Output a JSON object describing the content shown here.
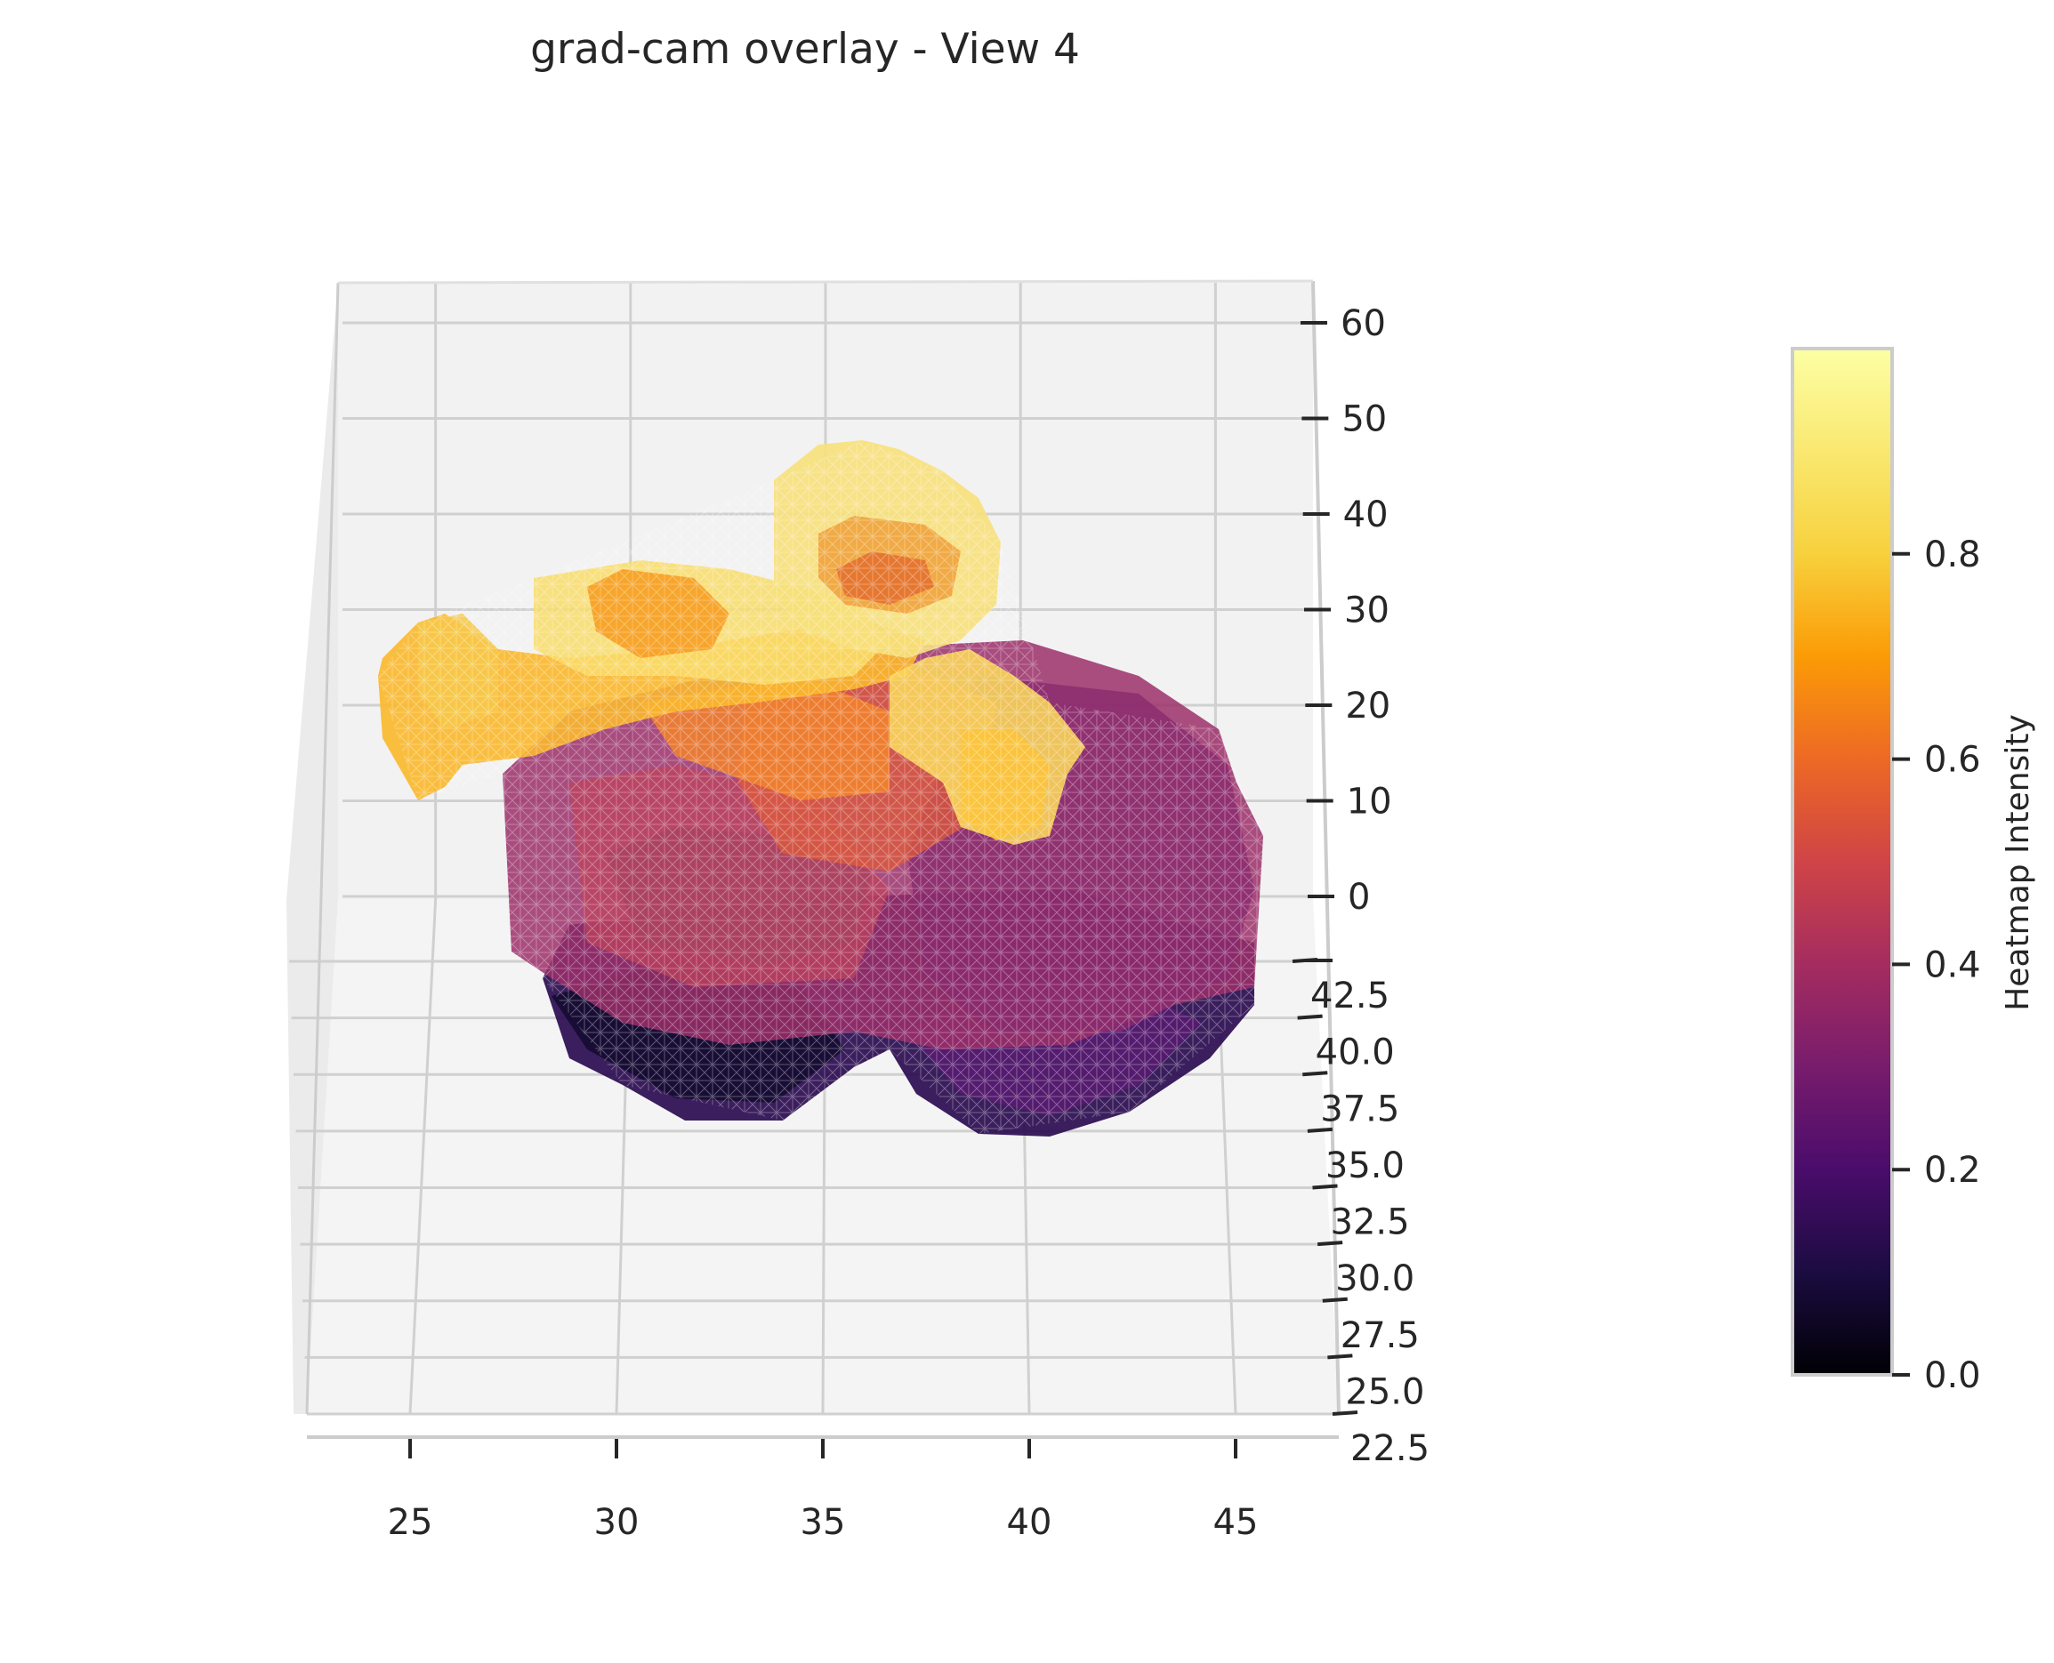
{
  "chart_data": {
    "type": "3d-surface",
    "title": "grad-cam overlay - View 4",
    "x_axis": {
      "ticks": [
        "25",
        "30",
        "35",
        "40",
        "45"
      ],
      "range": [
        22.5,
        47.5
      ]
    },
    "y_axis": {
      "ticks": [
        "22.5",
        "25.0",
        "27.5",
        "30.0",
        "32.5",
        "35.0",
        "37.5",
        "40.0",
        "42.5"
      ],
      "range": [
        22.5,
        42.5
      ]
    },
    "z_axis": {
      "ticks": [
        "0",
        "10",
        "20",
        "30",
        "40",
        "50",
        "60"
      ],
      "range": [
        -10,
        60
      ]
    },
    "grid": true,
    "colorbar": {
      "label": "Heatmap Intensity",
      "colormap": "inferno",
      "ticks": [
        "0.0",
        "0.2",
        "0.4",
        "0.6",
        "0.8"
      ],
      "range": [
        0.0,
        1.0
      ]
    },
    "surface_regions": [
      {
        "intensity": 0.15
      },
      {
        "intensity": 0.3
      },
      {
        "intensity": 0.45
      },
      {
        "intensity": 0.6
      },
      {
        "intensity": 0.72
      },
      {
        "intensity": 0.82
      },
      {
        "intensity": 0.9
      },
      {
        "intensity": 0.95
      }
    ]
  },
  "colors": {
    "pane": "#f2f2f2",
    "grid": "#d0d0d0",
    "text": "#262626"
  }
}
